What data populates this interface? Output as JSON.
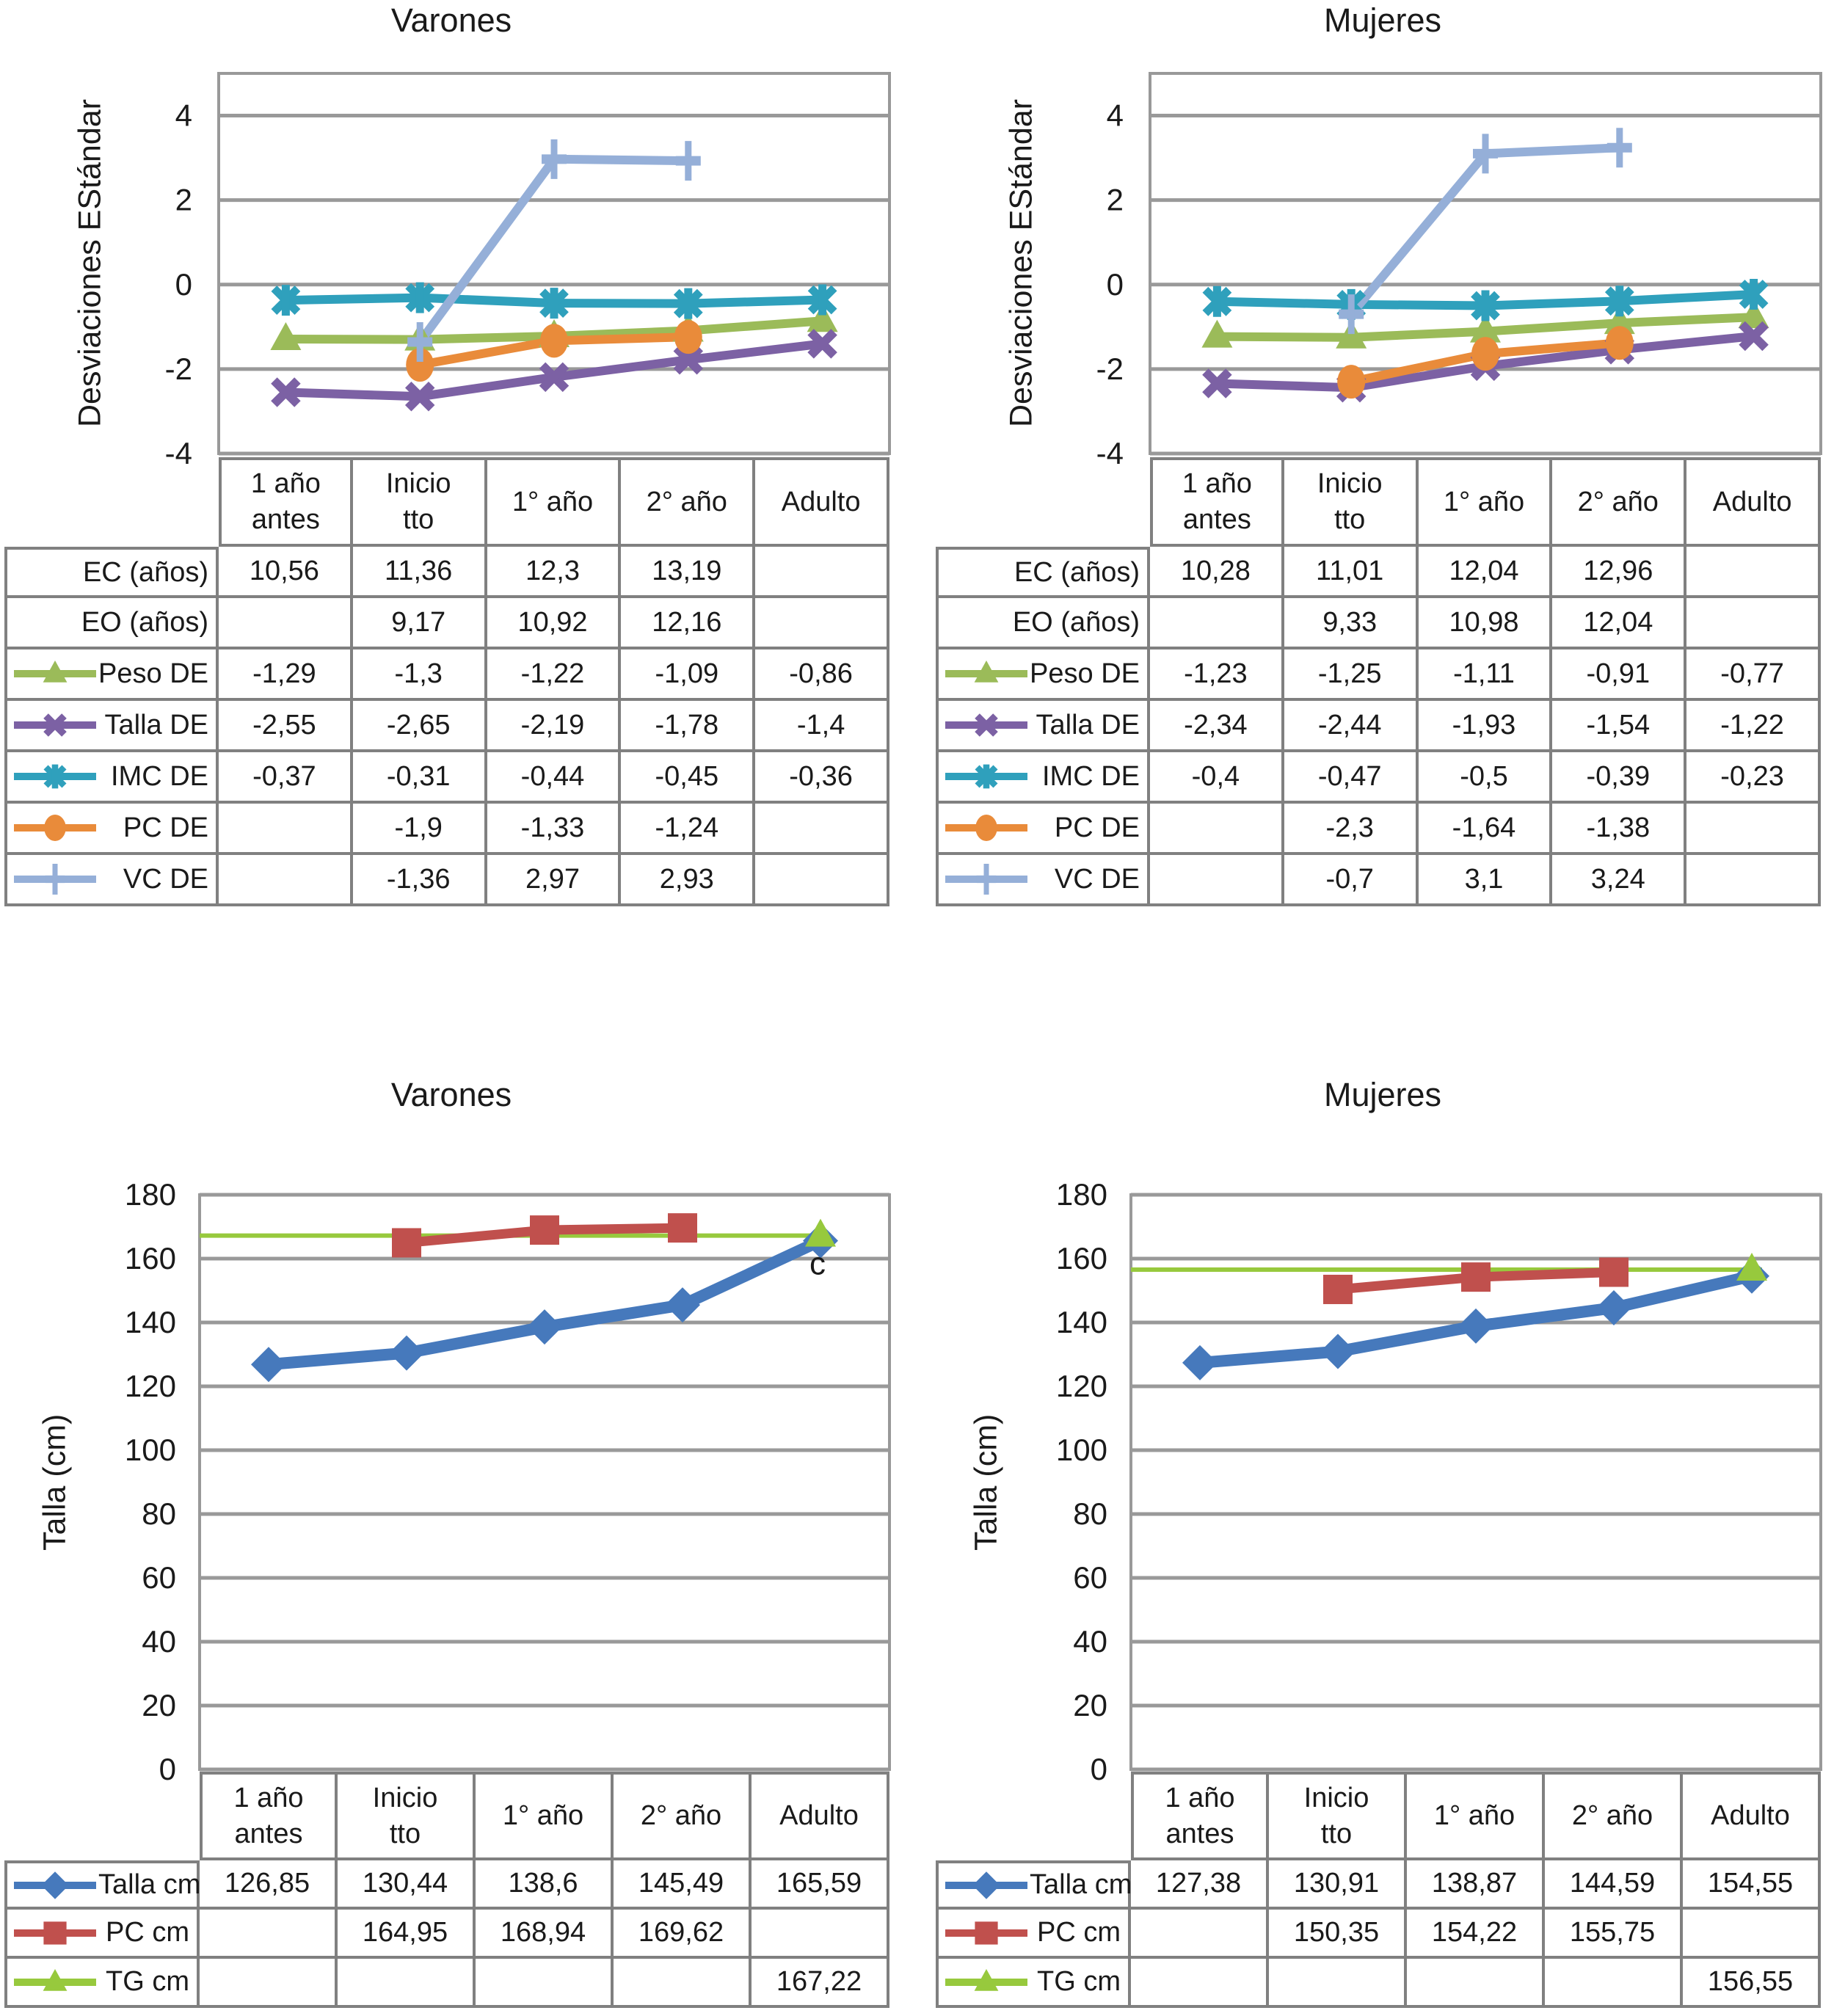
{
  "palette": {
    "green": "#9BBB59",
    "tg_green": "#97C93D",
    "purple": "#7C61A4",
    "teal": "#2FA0BC",
    "orange": "#E98B3A",
    "light_blue": "#95AFD8",
    "blue": "#4679BC",
    "red": "#C0504D",
    "grid": "#999999",
    "table_border": "#808080",
    "text": "#1A1A1A"
  },
  "categories": [
    [
      "1 año",
      "antes"
    ],
    [
      "Inicio",
      "tto"
    ],
    [
      "1° año"
    ],
    [
      "2° año"
    ],
    [
      "Adulto"
    ]
  ],
  "chart_data": [
    {
      "id": "varones-sds",
      "type": "line",
      "title": "Varones",
      "ylabel": "Desviaciones EStándar",
      "ylim": [
        -4,
        5
      ],
      "yticks": [
        4,
        2,
        0,
        -2,
        -4
      ],
      "grid": true,
      "legend_position": "table-left",
      "rows": [
        {
          "label": "EC (años)",
          "values": [
            "10,56",
            "11,36",
            "12,3",
            "13,19",
            ""
          ]
        },
        {
          "label": "EO (años)",
          "values": [
            "",
            "9,17",
            "10,92",
            "12,16",
            ""
          ]
        },
        {
          "label": "Peso DE",
          "marker": "triangle",
          "color": "green",
          "values": [
            "-1,29",
            "-1,3",
            "-1,22",
            "-1,09",
            "-0,86"
          ]
        },
        {
          "label": "Talla DE",
          "marker": "x",
          "color": "purple",
          "values": [
            "-2,55",
            "-2,65",
            "-2,19",
            "-1,78",
            "-1,4"
          ]
        },
        {
          "label": "IMC DE",
          "marker": "asterisk",
          "color": "teal",
          "values": [
            "-0,37",
            "-0,31",
            "-0,44",
            "-0,45",
            "-0,36"
          ]
        },
        {
          "label": "PC DE",
          "marker": "circle",
          "color": "orange",
          "values": [
            "",
            "-1,9",
            "-1,33",
            "-1,24",
            ""
          ]
        },
        {
          "label": "VC DE",
          "marker": "plus",
          "color": "light_blue",
          "values": [
            "",
            "-1,36",
            "2,97",
            "2,93",
            ""
          ]
        }
      ]
    },
    {
      "id": "mujeres-sds",
      "type": "line",
      "title": "Mujeres",
      "ylabel": "Desviaciones EStándar",
      "ylim": [
        -4,
        5
      ],
      "yticks": [
        4,
        2,
        0,
        -2,
        -4
      ],
      "grid": true,
      "legend_position": "table-left",
      "rows": [
        {
          "label": "EC (años)",
          "values": [
            "10,28",
            "11,01",
            "12,04",
            "12,96",
            ""
          ]
        },
        {
          "label": "EO (años)",
          "values": [
            "",
            "9,33",
            "10,98",
            "12,04",
            ""
          ]
        },
        {
          "label": "Peso DE",
          "marker": "triangle",
          "color": "green",
          "values": [
            "-1,23",
            "-1,25",
            "-1,11",
            "-0,91",
            "-0,77"
          ]
        },
        {
          "label": "Talla DE",
          "marker": "x",
          "color": "purple",
          "values": [
            "-2,34",
            "-2,44",
            "-1,93",
            "-1,54",
            "-1,22"
          ]
        },
        {
          "label": "IMC DE",
          "marker": "asterisk",
          "color": "teal",
          "values": [
            "-0,4",
            "-0,47",
            "-0,5",
            "-0,39",
            "-0,23"
          ]
        },
        {
          "label": "PC DE",
          "marker": "circle",
          "color": "orange",
          "values": [
            "",
            "-2,3",
            "-1,64",
            "-1,38",
            ""
          ]
        },
        {
          "label": "VC DE",
          "marker": "plus",
          "color": "light_blue",
          "values": [
            "",
            "-0,7",
            "3,1",
            "3,24",
            ""
          ]
        }
      ]
    },
    {
      "id": "varones-talla",
      "type": "line",
      "title": "Varones",
      "ylabel": "Talla (cm)",
      "ylim": [
        0,
        180
      ],
      "yticks": [
        180,
        160,
        140,
        120,
        100,
        80,
        60,
        40,
        20,
        0
      ],
      "grid": true,
      "legend_position": "table-left",
      "annotation": {
        "text": "c",
        "x_index": 4,
        "y_value": 158.5,
        "dx": -4
      },
      "rows": [
        {
          "label": "Talla cm",
          "marker": "diamond",
          "color": "blue",
          "values": [
            "126,85",
            "130,44",
            "138,6",
            "145,49",
            "165,59"
          ]
        },
        {
          "label": "PC cm",
          "marker": "square",
          "color": "red",
          "values": [
            "",
            "164,95",
            "168,94",
            "169,62",
            ""
          ]
        },
        {
          "label": "TG cm",
          "marker": "triangle",
          "color": "tg_green",
          "hline": true,
          "values": [
            "",
            "",
            "",
            "",
            "167,22"
          ]
        }
      ]
    },
    {
      "id": "mujeres-talla",
      "type": "line",
      "title": "Mujeres",
      "ylabel": "Talla (cm)",
      "ylim": [
        0,
        180
      ],
      "yticks": [
        180,
        160,
        140,
        120,
        100,
        80,
        60,
        40,
        20,
        0
      ],
      "grid": true,
      "legend_position": "table-left",
      "rows": [
        {
          "label": "Talla cm",
          "marker": "diamond",
          "color": "blue",
          "values": [
            "127,38",
            "130,91",
            "138,87",
            "144,59",
            "154,55"
          ]
        },
        {
          "label": "PC cm",
          "marker": "square",
          "color": "red",
          "values": [
            "",
            "150,35",
            "154,22",
            "155,75",
            ""
          ]
        },
        {
          "label": "TG cm",
          "marker": "triangle",
          "color": "tg_green",
          "hline": true,
          "values": [
            "",
            "",
            "",
            "",
            "156,55"
          ]
        }
      ]
    }
  ]
}
